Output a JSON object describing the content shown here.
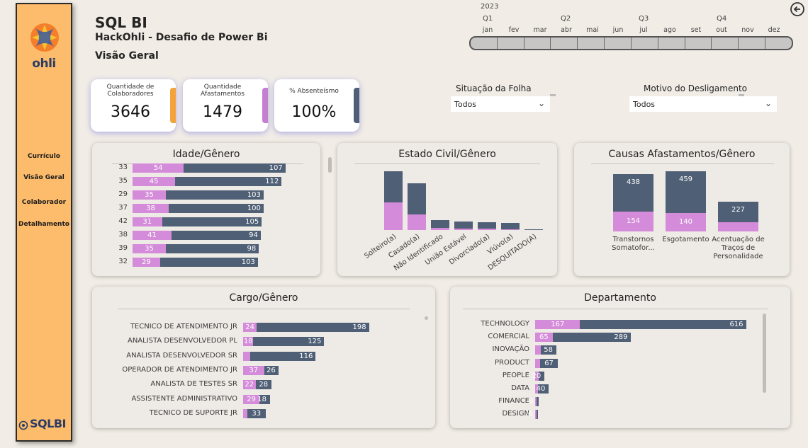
{
  "sidebar": {
    "logo_text": "ohli",
    "nav": [
      "Currículo",
      "Visão Geral",
      "Colaborador",
      "Detalhamento"
    ],
    "footer_logo": "SQLBI"
  },
  "header": {
    "title": "SQL BI",
    "subtitle": "HackOhli - Desafio de Power Bi",
    "view_title": "Visão Geral"
  },
  "timeline": {
    "year": "2023",
    "quarters": [
      "Q1",
      "Q2",
      "Q3",
      "Q4"
    ],
    "months": [
      "jan",
      "fev",
      "mar",
      "abr",
      "mai",
      "jun",
      "jul",
      "ago",
      "set",
      "out",
      "nov",
      "dez"
    ]
  },
  "kpis": [
    {
      "label": "Quantidade de Colaboradores",
      "value": "3646",
      "accent": "#f4a23a"
    },
    {
      "label": "Quantidade Afastamentos",
      "value": "1479",
      "accent": "#c47fd0"
    },
    {
      "label": "% Absenteísmo",
      "value": "100%",
      "accent": "#4f5f75"
    }
  ],
  "slicers": [
    {
      "title": "Situação da Folha",
      "value": "Todos"
    },
    {
      "title": "Motivo do Desligamento",
      "value": "Todos"
    }
  ],
  "colors": {
    "pink": "#d48bd9",
    "slate": "#4f5f75",
    "accent_orange": "#fdbc6b"
  },
  "chart_data": [
    {
      "type": "bar",
      "orientation": "horizontal-stacked",
      "title": "Idade/Gênero",
      "categories": [
        "33",
        "35",
        "29",
        "37",
        "42",
        "38",
        "39",
        "32"
      ],
      "series": [
        {
          "values": [
            54,
            45,
            35,
            38,
            31,
            41,
            35,
            29
          ]
        },
        {
          "values": [
            107,
            112,
            103,
            100,
            105,
            94,
            98,
            103
          ]
        }
      ]
    },
    {
      "type": "bar",
      "orientation": "vertical-stacked",
      "title": "Estado Civil/Gênero",
      "categories": [
        "Solteiro(a)",
        "Casado(a)",
        "Não Identificado",
        "União Estável",
        "Divorciado(a)",
        "Viúvo(a)",
        "DESQUITADO(A)"
      ],
      "series": [
        {
          "values": [
            78,
            45,
            6,
            5,
            4,
            3,
            0
          ]
        },
        {
          "values": [
            167,
            133,
            28,
            25,
            22,
            20,
            2
          ]
        }
      ]
    },
    {
      "type": "bar",
      "orientation": "vertical-stacked",
      "title": "Causas Afastamentos/Gênero",
      "categories": [
        "Transtornos Somatofor...",
        "Esgotamento",
        "Acentuação de Traços de Personalidade"
      ],
      "series": [
        {
          "values": [
            154,
            140,
            70
          ]
        },
        {
          "values": [
            438,
            459,
            227
          ]
        }
      ]
    },
    {
      "type": "bar",
      "orientation": "horizontal-stacked",
      "title": "Cargo/Gênero",
      "categories": [
        "TECNICO DE ATENDIMENTO JR",
        "ANALISTA DESENVOLVEDOR PL",
        "ANALISTA DESENVOLVEDOR SR",
        "OPERADOR DE ATENDIMENTO JR",
        "ANALISTA DE TESTES SR",
        "ASSISTENTE ADMINISTRATIVO",
        "TECNICO DE SUPORTE JR"
      ],
      "series": [
        {
          "values": [
            24,
            18,
            12,
            37,
            22,
            29,
            7
          ]
        },
        {
          "values": [
            198,
            125,
            116,
            26,
            28,
            18,
            33
          ]
        }
      ]
    },
    {
      "type": "bar",
      "orientation": "horizontal-stacked",
      "title": "Departamento",
      "categories": [
        "TECHNOLOGY",
        "COMERCIAL",
        "INOVAÇÃO",
        "PRODUCT",
        "PEOPLE",
        "DATA",
        "FINANCE",
        "DESIGN"
      ],
      "series": [
        {
          "values": [
            167,
            65,
            20,
            18,
            14,
            10,
            6,
            4
          ]
        },
        {
          "values": [
            616,
            289,
            58,
            67,
            20,
            40,
            8,
            6
          ]
        }
      ]
    }
  ]
}
